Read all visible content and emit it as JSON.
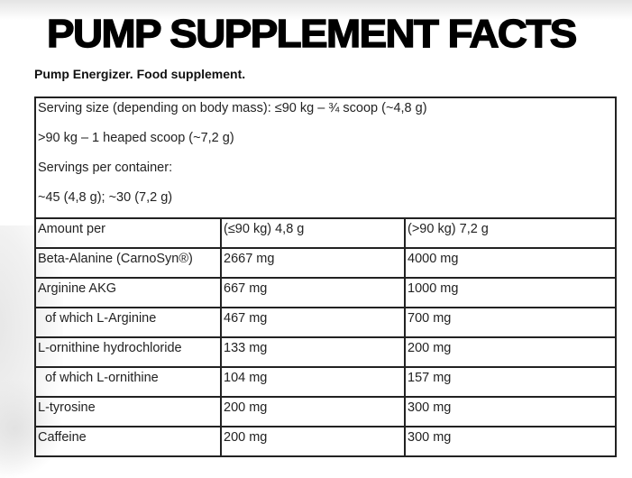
{
  "header": {
    "title": "PUMP SUPPLEMENT FACTS",
    "subtitle": "Pump Energizer. Food supplement."
  },
  "serving": {
    "lines": [
      "Serving size (depending on body mass): ≤90 kg – ¾ scoop (~4,8 g)",
      ">90 kg – 1 heaped scoop (~7,2 g)",
      "Servings per container:",
      "~45 (4,8 g); ~30 (7,2 g)"
    ]
  },
  "table": {
    "header": [
      "Amount per",
      "(≤90 kg) 4,8 g",
      "(>90 kg) 7,2 g"
    ],
    "rows": [
      {
        "name": "Beta-Alanine (CarnoSyn®)",
        "v1": "2667 mg",
        "v2": "4000 mg",
        "indent": false
      },
      {
        "name": "Arginine AKG",
        "v1": "667 mg",
        "v2": "1000 mg",
        "indent": false
      },
      {
        "name": "of which L-Arginine",
        "v1": "467 mg",
        "v2": "700 mg",
        "indent": true
      },
      {
        "name": "L-ornithine hydrochloride",
        "v1": "133 mg",
        "v2": "200 mg",
        "indent": false
      },
      {
        "name": "of which L-ornithine",
        "v1": "104 mg",
        "v2": "157 mg",
        "indent": true
      },
      {
        "name": "L-tyrosine",
        "v1": "200 mg",
        "v2": "300 mg",
        "indent": false
      },
      {
        "name": "Caffeine",
        "v1": "200 mg",
        "v2": "300 mg",
        "indent": false
      }
    ]
  }
}
